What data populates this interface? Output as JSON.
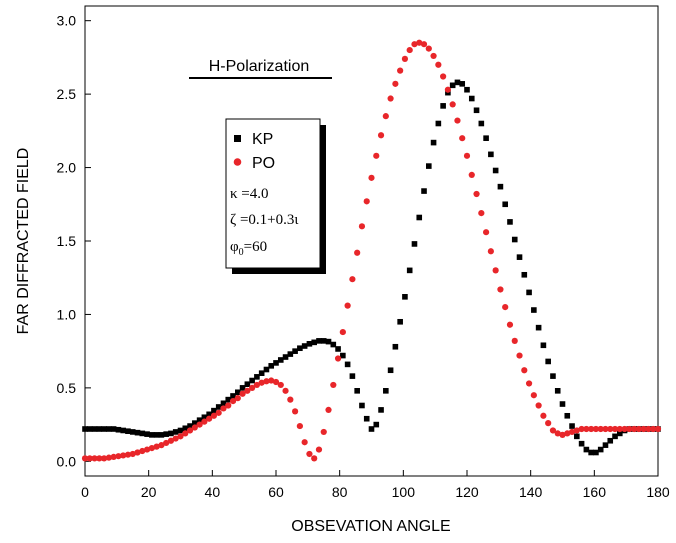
{
  "chart_data": {
    "type": "scatter",
    "xlabel": "OBSEVATION ANGLE",
    "ylabel": "FAR DIFFRACTED FIELD",
    "xlim": [
      0,
      180
    ],
    "ylim": [
      -0.1,
      3.1
    ],
    "xticks": [
      0,
      20,
      40,
      60,
      80,
      100,
      120,
      140,
      160,
      180
    ],
    "xtick_labels": [
      "0",
      "20",
      "40",
      "60",
      "80",
      "100",
      "120",
      "140",
      "160",
      "180"
    ],
    "yticks": [
      0.0,
      0.5,
      1.0,
      1.5,
      2.0,
      2.5,
      3.0
    ],
    "ytick_labels": [
      "0.0",
      "0.5",
      "1.0",
      "1.5",
      "2.0",
      "2.5",
      "3.0"
    ],
    "grid": false,
    "legend_position": "upper-left",
    "annotation": "H-Polarization",
    "params": {
      "kappa": "κ =4.0",
      "zeta": "ζ =0.1+0.3ι",
      "phi_sym": "φ",
      "phi_sub": "0",
      "phi_val": "=60"
    },
    "series": [
      {
        "name": "KP",
        "marker": "square",
        "color": "#000000",
        "x_start": 0,
        "x_step": 1.5,
        "y": [
          0.22,
          0.22,
          0.22,
          0.22,
          0.22,
          0.22,
          0.22,
          0.215,
          0.21,
          0.205,
          0.2,
          0.195,
          0.19,
          0.185,
          0.18,
          0.18,
          0.18,
          0.185,
          0.19,
          0.2,
          0.21,
          0.225,
          0.24,
          0.26,
          0.28,
          0.3,
          0.32,
          0.345,
          0.37,
          0.395,
          0.42,
          0.445,
          0.47,
          0.5,
          0.525,
          0.55,
          0.575,
          0.6,
          0.625,
          0.65,
          0.67,
          0.69,
          0.71,
          0.73,
          0.75,
          0.77,
          0.785,
          0.8,
          0.81,
          0.82,
          0.82,
          0.815,
          0.795,
          0.765,
          0.72,
          0.66,
          0.58,
          0.48,
          0.38,
          0.29,
          0.22,
          0.25,
          0.35,
          0.48,
          0.62,
          0.78,
          0.95,
          1.12,
          1.3,
          1.48,
          1.66,
          1.84,
          2.01,
          2.17,
          2.3,
          2.42,
          2.51,
          2.56,
          2.58,
          2.57,
          2.53,
          2.47,
          2.39,
          2.3,
          2.2,
          2.09,
          1.98,
          1.87,
          1.75,
          1.63,
          1.51,
          1.39,
          1.27,
          1.15,
          1.03,
          0.91,
          0.79,
          0.68,
          0.58,
          0.48,
          0.39,
          0.31,
          0.24,
          0.17,
          0.12,
          0.08,
          0.06,
          0.06,
          0.08,
          0.11,
          0.14,
          0.17,
          0.19,
          0.21,
          0.22,
          0.22,
          0.22,
          0.22,
          0.22,
          0.22,
          0.22
        ]
      },
      {
        "name": "PO",
        "marker": "circle",
        "color": "#e8262a",
        "x_start": 0,
        "x_step": 1.5,
        "y": [
          0.02,
          0.02,
          0.02,
          0.02,
          0.02,
          0.025,
          0.03,
          0.035,
          0.04,
          0.045,
          0.05,
          0.06,
          0.07,
          0.08,
          0.09,
          0.1,
          0.11,
          0.125,
          0.14,
          0.155,
          0.17,
          0.19,
          0.21,
          0.23,
          0.25,
          0.27,
          0.29,
          0.31,
          0.33,
          0.36,
          0.38,
          0.41,
          0.43,
          0.46,
          0.48,
          0.5,
          0.52,
          0.535,
          0.545,
          0.55,
          0.54,
          0.52,
          0.48,
          0.42,
          0.34,
          0.24,
          0.13,
          0.05,
          0.02,
          0.08,
          0.2,
          0.35,
          0.52,
          0.7,
          0.88,
          1.06,
          1.24,
          1.42,
          1.6,
          1.77,
          1.93,
          2.08,
          2.22,
          2.35,
          2.47,
          2.57,
          2.66,
          2.74,
          2.8,
          2.84,
          2.85,
          2.84,
          2.81,
          2.76,
          2.7,
          2.62,
          2.53,
          2.43,
          2.32,
          2.2,
          2.08,
          1.95,
          1.82,
          1.69,
          1.56,
          1.43,
          1.3,
          1.17,
          1.05,
          0.93,
          0.82,
          0.72,
          0.62,
          0.53,
          0.45,
          0.38,
          0.31,
          0.26,
          0.21,
          0.19,
          0.18,
          0.19,
          0.2,
          0.21,
          0.22,
          0.22,
          0.22,
          0.22,
          0.22,
          0.22,
          0.22,
          0.22,
          0.22,
          0.22,
          0.22,
          0.22,
          0.22,
          0.22,
          0.22,
          0.22,
          0.22
        ]
      }
    ]
  }
}
